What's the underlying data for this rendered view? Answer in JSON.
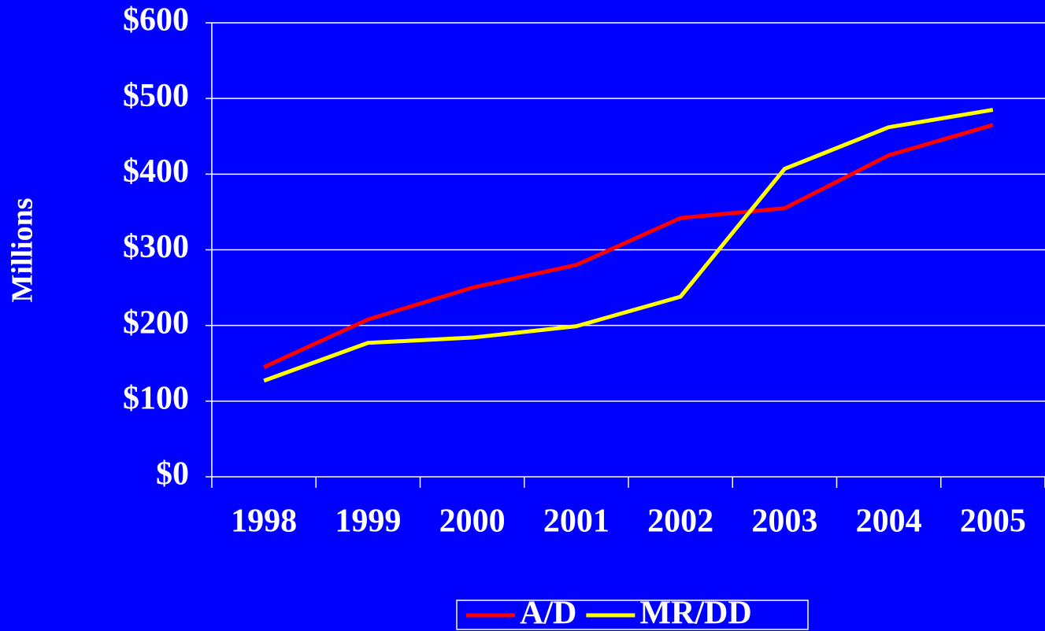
{
  "chart_data": {
    "type": "line",
    "y_label": "Millions",
    "categories": [
      "1998",
      "1999",
      "2000",
      "2001",
      "2002",
      "2003",
      "2004",
      "2005"
    ],
    "series": [
      {
        "name": "A/D",
        "color": "#ff0000",
        "values": [
          145,
          208,
          250,
          280,
          342,
          355,
          425,
          465
        ]
      },
      {
        "name": "MR/DD",
        "color": "#ffff00",
        "values": [
          127,
          177,
          184,
          199,
          238,
          407,
          462,
          485
        ]
      }
    ],
    "ylim": [
      0,
      600
    ],
    "yticks": [
      {
        "value": 0,
        "label": "$0"
      },
      {
        "value": 100,
        "label": "$100"
      },
      {
        "value": 200,
        "label": "$200"
      },
      {
        "value": 300,
        "label": "$300"
      },
      {
        "value": 400,
        "label": "$400"
      },
      {
        "value": 500,
        "label": "$500"
      },
      {
        "value": 600,
        "label": "$600"
      }
    ],
    "grid": true,
    "legend": "bottom"
  }
}
